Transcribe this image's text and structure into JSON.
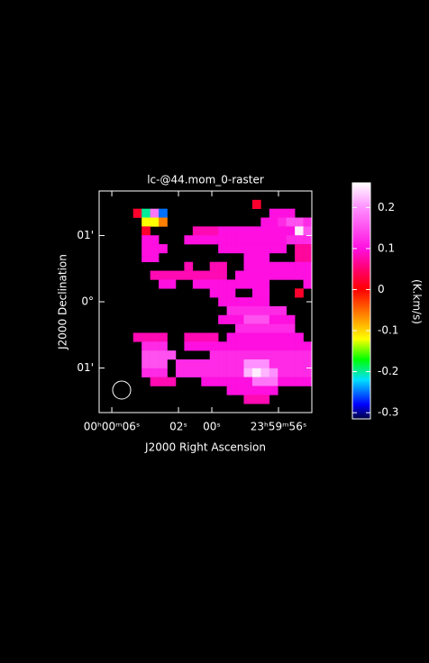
{
  "chart_data": {
    "type": "heatmap",
    "title": "lc-@44.mom_0-raster",
    "x_label": "J2000 Right Ascension",
    "y_label": "J2000 Declination",
    "colorbar_label": "(K.km/s)",
    "xlim": [
      6.76,
      -6.0
    ],
    "xticks": [
      {
        "value": 6,
        "label": "00ʰ00ᵐ06ˢ"
      },
      {
        "value": 2,
        "label": "02ˢ"
      },
      {
        "value": 0,
        "label": "00ˢ"
      },
      {
        "value": -4,
        "label": "23ʰ59ᵐ56ˢ"
      }
    ],
    "ylim": [
      -1.673,
      1.673
    ],
    "yticks": [
      {
        "value": 1,
        "label": "01'"
      },
      {
        "value": 0,
        "label": "0°"
      },
      {
        "value": -1,
        "label": "01'"
      }
    ],
    "colorlim": [
      -0.315,
      0.26
    ],
    "colorticks": [
      0.2,
      0.1,
      0,
      -0.1,
      -0.2,
      -0.3
    ],
    "colorscale": [
      [
        -0.315,
        "#000040"
      ],
      [
        -0.28,
        "#0000ff"
      ],
      [
        -0.22,
        "#00e0ff"
      ],
      [
        -0.17,
        "#00ff00"
      ],
      [
        -0.12,
        "#ffff00"
      ],
      [
        -0.06,
        "#ff8000"
      ],
      [
        0,
        "#ff0000"
      ],
      [
        0.05,
        "#ff0070"
      ],
      [
        0.1,
        "#ff10e0"
      ],
      [
        0.2,
        "#ff90ff"
      ],
      [
        0.26,
        "#ffffff"
      ]
    ],
    "z": [
      [
        null,
        null,
        null,
        null,
        null,
        null,
        null,
        null,
        null,
        null,
        null,
        null,
        null,
        null,
        null,
        null,
        null,
        null,
        null,
        null,
        null,
        null,
        null,
        null,
        null
      ],
      [
        null,
        null,
        null,
        null,
        null,
        null,
        null,
        null,
        null,
        null,
        null,
        null,
        null,
        null,
        null,
        null,
        null,
        null,
        0.02,
        null,
        null,
        null,
        null,
        null,
        null
      ],
      [
        null,
        null,
        null,
        null,
        0.02,
        -0.2,
        0.18,
        -0.25,
        null,
        null,
        null,
        null,
        null,
        null,
        null,
        null,
        null,
        null,
        null,
        null,
        0.1,
        0.1,
        0.1,
        null,
        null
      ],
      [
        null,
        null,
        null,
        null,
        null,
        -0.12,
        -0.12,
        -0.06,
        null,
        null,
        null,
        null,
        null,
        null,
        null,
        null,
        null,
        null,
        null,
        0.1,
        0.1,
        0.12,
        0.15,
        0.15,
        0.12
      ],
      [
        null,
        null,
        null,
        null,
        null,
        0.02,
        null,
        null,
        null,
        null,
        null,
        0.08,
        0.08,
        0.08,
        0.1,
        0.1,
        0.1,
        0.1,
        0.1,
        0.1,
        0.1,
        0.1,
        0.1,
        0.25,
        0.15
      ],
      [
        null,
        null,
        null,
        null,
        null,
        0.1,
        0.1,
        null,
        null,
        null,
        0.1,
        0.1,
        0.1,
        0.1,
        0.1,
        0.1,
        0.1,
        0.1,
        0.1,
        0.1,
        0.1,
        0.1,
        0.12,
        0.12,
        0.12
      ],
      [
        null,
        null,
        null,
        null,
        null,
        0.1,
        0.1,
        0.1,
        null,
        null,
        null,
        null,
        null,
        null,
        0.1,
        0.1,
        0.1,
        0.1,
        0.1,
        0.1,
        0.1,
        0.1,
        null,
        0.07,
        0.07
      ],
      [
        null,
        null,
        null,
        null,
        null,
        0.1,
        0.1,
        null,
        null,
        null,
        null,
        null,
        null,
        null,
        null,
        null,
        null,
        0.1,
        0.1,
        0.1,
        null,
        null,
        null,
        0.07,
        0.07
      ],
      [
        null,
        null,
        null,
        null,
        null,
        null,
        null,
        null,
        null,
        null,
        0.08,
        null,
        null,
        0.08,
        0.08,
        null,
        null,
        0.1,
        0.1,
        0.1,
        0.1,
        0.1,
        0.1,
        0.1,
        0.1
      ],
      [
        null,
        null,
        null,
        null,
        null,
        null,
        0.08,
        0.08,
        0.08,
        0.08,
        0.08,
        0.08,
        0.08,
        0.08,
        0.08,
        null,
        0.1,
        0.1,
        0.1,
        0.1,
        0.1,
        0.1,
        0.1,
        0.1,
        0.1
      ],
      [
        null,
        null,
        null,
        null,
        null,
        null,
        null,
        0.1,
        0.1,
        null,
        null,
        0.1,
        0.1,
        0.1,
        0.1,
        0.1,
        0.1,
        0.1,
        0.1,
        0.1,
        null,
        null,
        null,
        null,
        0.1
      ],
      [
        null,
        null,
        null,
        null,
        null,
        null,
        null,
        null,
        null,
        null,
        null,
        null,
        null,
        0.1,
        0.1,
        0.1,
        null,
        null,
        0.1,
        0.1,
        null,
        null,
        null,
        0.02,
        null
      ],
      [
        null,
        null,
        null,
        null,
        null,
        null,
        null,
        null,
        null,
        null,
        null,
        null,
        null,
        null,
        0.1,
        0.1,
        0.1,
        0.1,
        0.1,
        0.1,
        null,
        null,
        null,
        null,
        null
      ],
      [
        null,
        null,
        null,
        null,
        null,
        null,
        null,
        null,
        null,
        null,
        null,
        null,
        null,
        null,
        null,
        0.12,
        0.12,
        0.12,
        0.12,
        0.12,
        0.12,
        0.12,
        null,
        null,
        null
      ],
      [
        null,
        null,
        null,
        null,
        null,
        null,
        null,
        null,
        null,
        null,
        null,
        null,
        null,
        null,
        0.1,
        0.1,
        0.1,
        0.15,
        0.15,
        0.15,
        0.1,
        0.1,
        0.1,
        null,
        null
      ],
      [
        null,
        null,
        null,
        null,
        null,
        null,
        null,
        null,
        null,
        null,
        null,
        null,
        null,
        null,
        null,
        null,
        0.12,
        0.12,
        0.12,
        0.12,
        0.12,
        0.12,
        0.12,
        null,
        null
      ],
      [
        null,
        null,
        null,
        null,
        0.08,
        0.08,
        0.08,
        0.08,
        null,
        null,
        0.08,
        0.08,
        0.08,
        0.08,
        null,
        0.1,
        0.1,
        0.1,
        0.1,
        0.1,
        0.1,
        0.1,
        0.1,
        0.1,
        null
      ],
      [
        null,
        null,
        null,
        null,
        null,
        0.12,
        0.12,
        0.12,
        null,
        null,
        0.1,
        0.1,
        0.1,
        0.1,
        0.1,
        0.1,
        0.1,
        0.1,
        0.1,
        0.1,
        0.1,
        0.1,
        0.1,
        0.1,
        0.1
      ],
      [
        null,
        null,
        null,
        null,
        null,
        0.15,
        0.15,
        0.15,
        0.15,
        null,
        null,
        null,
        null,
        0.12,
        0.12,
        0.12,
        0.12,
        0.12,
        0.12,
        0.12,
        0.12,
        0.12,
        0.12,
        0.12,
        0.12
      ],
      [
        null,
        null,
        null,
        null,
        null,
        0.15,
        0.15,
        0.15,
        null,
        0.12,
        0.12,
        0.12,
        0.12,
        0.12,
        0.12,
        0.12,
        0.12,
        0.2,
        0.2,
        0.2,
        0.12,
        0.12,
        0.12,
        0.12,
        0.12
      ],
      [
        null,
        null,
        null,
        null,
        null,
        0.12,
        0.12,
        0.12,
        null,
        0.12,
        0.12,
        0.12,
        0.12,
        0.12,
        0.12,
        0.12,
        0.12,
        0.22,
        0.25,
        0.22,
        0.2,
        0.12,
        0.12,
        0.12,
        0.12
      ],
      [
        null,
        null,
        null,
        null,
        null,
        null,
        0.08,
        0.08,
        0.08,
        null,
        null,
        null,
        0.1,
        0.1,
        0.1,
        0.1,
        0.1,
        0.1,
        0.18,
        0.18,
        0.18,
        0.1,
        0.1,
        0.1,
        0.1
      ],
      [
        null,
        null,
        null,
        null,
        null,
        null,
        null,
        null,
        null,
        null,
        null,
        null,
        null,
        null,
        null,
        0.1,
        0.1,
        0.1,
        0.1,
        0.1,
        0.1,
        null,
        null,
        null,
        null
      ],
      [
        null,
        null,
        null,
        null,
        null,
        null,
        null,
        null,
        null,
        null,
        null,
        null,
        null,
        null,
        null,
        null,
        null,
        0.08,
        0.08,
        0.08,
        null,
        null,
        null,
        null,
        null
      ],
      [
        null,
        null,
        null,
        null,
        null,
        null,
        null,
        null,
        null,
        null,
        null,
        null,
        null,
        null,
        null,
        null,
        null,
        null,
        null,
        null,
        null,
        null,
        null,
        null,
        null
      ]
    ]
  }
}
